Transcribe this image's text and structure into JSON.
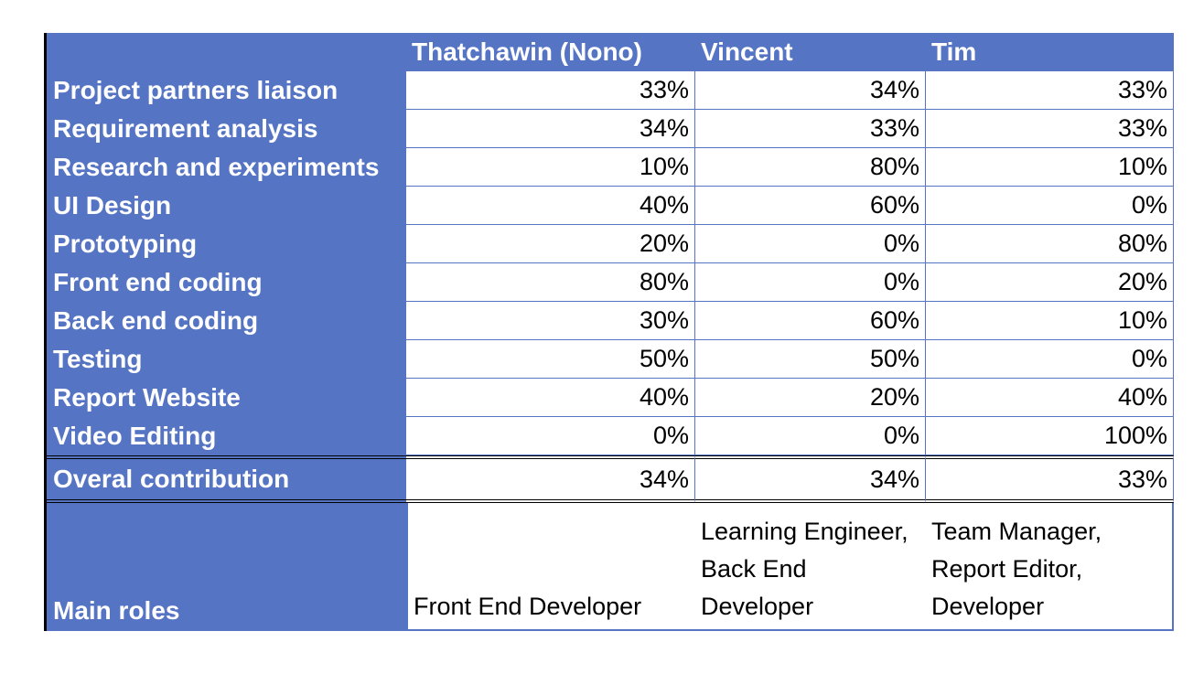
{
  "headers": [
    "",
    "Thatchawin (Nono)",
    "Vincent",
    "Tim"
  ],
  "rows": [
    {
      "label": "Project partners liaison",
      "values": [
        "33%",
        "34%",
        "33%"
      ]
    },
    {
      "label": "Requirement analysis",
      "values": [
        "34%",
        "33%",
        "33%"
      ]
    },
    {
      "label": "Research and experiments",
      "values": [
        "10%",
        "80%",
        "10%"
      ]
    },
    {
      "label": "UI Design",
      "values": [
        "40%",
        "60%",
        "0%"
      ]
    },
    {
      "label": "Prototyping",
      "values": [
        "20%",
        "0%",
        "80%"
      ]
    },
    {
      "label": "Front end coding",
      "values": [
        "80%",
        "0%",
        "20%"
      ]
    },
    {
      "label": "Back end coding",
      "values": [
        "30%",
        "60%",
        "10%"
      ]
    },
    {
      "label": "Testing",
      "values": [
        "50%",
        "50%",
        "0%"
      ]
    },
    {
      "label": "Report Website",
      "values": [
        "40%",
        "20%",
        "40%"
      ]
    },
    {
      "label": "Video Editing",
      "values": [
        "0%",
        "0%",
        "100%"
      ]
    }
  ],
  "total": {
    "label": "Overal contribution",
    "values": [
      "34%",
      "34%",
      "33%"
    ]
  },
  "roles": {
    "label": "Main roles",
    "values": [
      "Front End Developer",
      "Learning Engineer, Back End Developer",
      "Team Manager, Report Editor, Developer"
    ]
  },
  "colors": {
    "header_fill": "#5574c4",
    "header_text": "#ffffff",
    "cell_text": "#000000"
  }
}
